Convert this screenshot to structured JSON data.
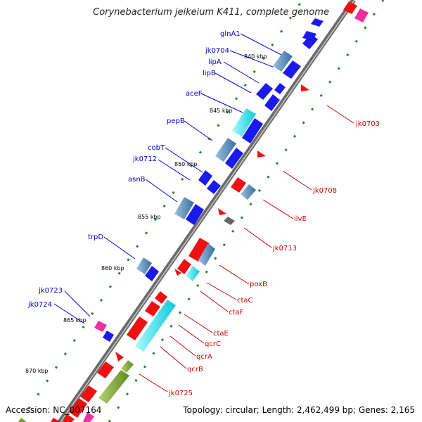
{
  "title": "Corynebacterium jeikeium K411, complete genome",
  "footer": {
    "accession": "Accession: NC_007164",
    "topology": "Topology: circular; Length: 2,462,499 bp; Genes: 2,165"
  },
  "colors": {
    "forward_label": "#0000cc",
    "reverse_label": "#cc0000",
    "backbone": "#777777",
    "ticks": "#228822",
    "blue": "#1a1aee",
    "steel": "#4f86b8",
    "cyan": "#20e0e8",
    "red": "#ee1111",
    "olive": "#7aa030",
    "magenta": "#ee2fa0",
    "gray": "#666666"
  },
  "scale_labels": [
    "840 kbp",
    "845 kbp",
    "850 kbp",
    "855 kbp",
    "860 kbp",
    "865 kbp",
    "870 kbp"
  ],
  "forward_genes": [
    "glnA1",
    "jk0704",
    "lipA",
    "lipB",
    "aceF",
    "pepB",
    "cobT",
    "jk0712",
    "asnB",
    "trpD",
    "jk0723",
    "jk0724"
  ],
  "reverse_genes": [
    "jk0703",
    "jk0708",
    "ilvE",
    "jk0713",
    "poxB",
    "ctaC",
    "ctaF",
    "ctaE",
    "qcrC",
    "qcrA",
    "qcrB",
    "jk0725"
  ]
}
